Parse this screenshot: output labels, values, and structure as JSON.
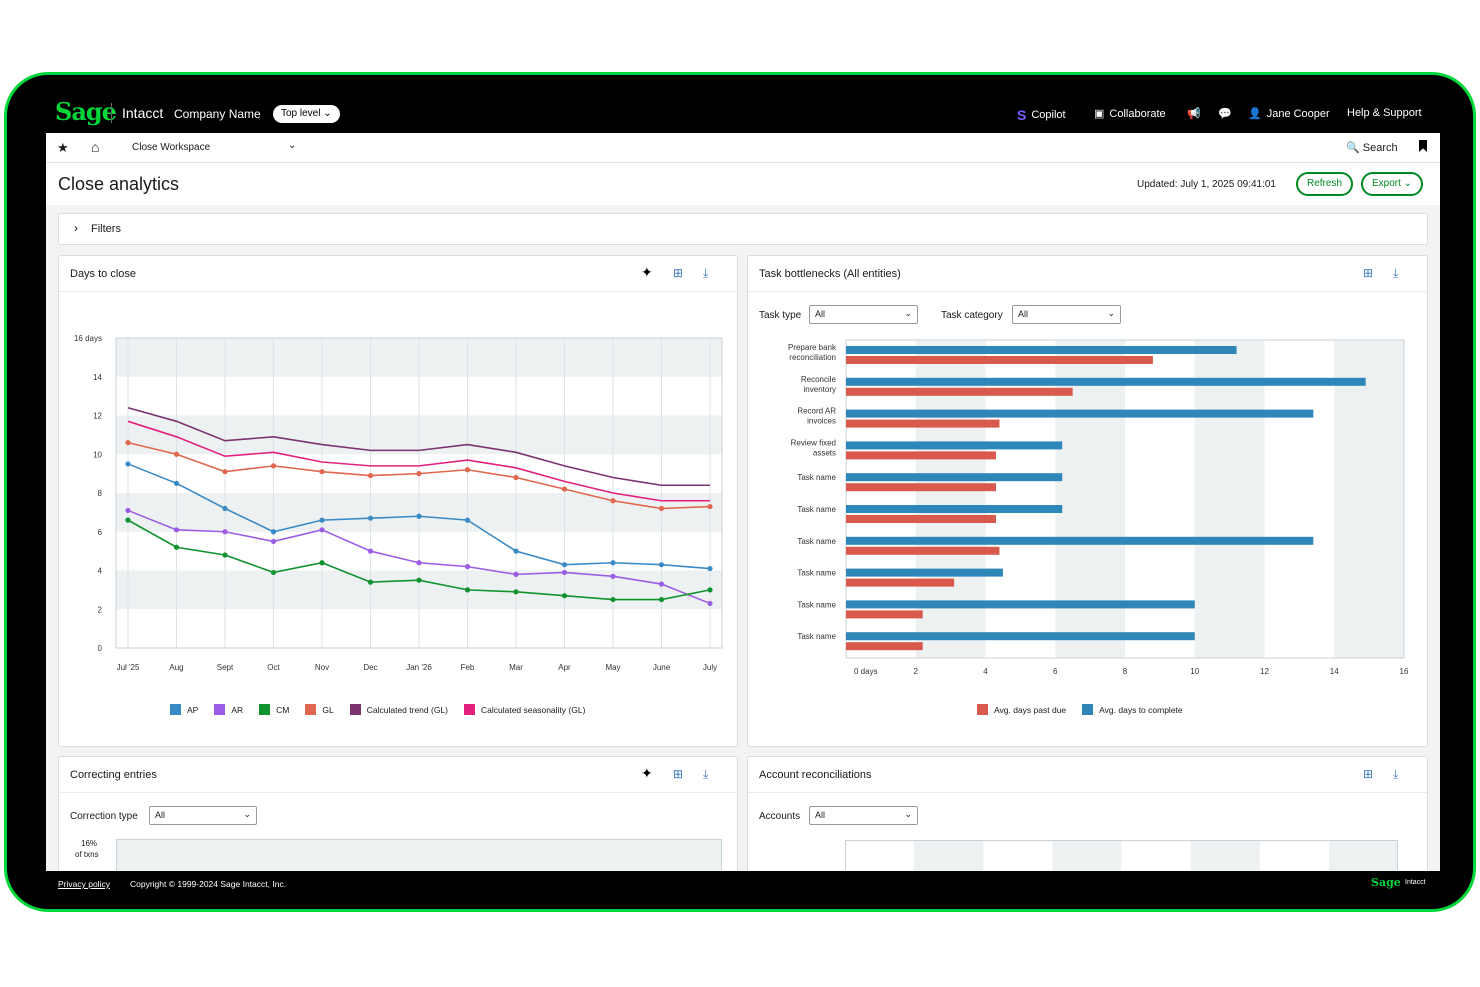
{
  "topbar": {
    "logo": "Sage",
    "product": "Intacct",
    "company": "Company Name",
    "level": "Top level",
    "level_chevron": "⌄",
    "copilot_icon": "S",
    "copilot": "Copilot",
    "collaborate_icon": "▣",
    "collaborate": "Collaborate",
    "announce_icon": "📢",
    "chat_icon": "💬",
    "user_icon": "👤",
    "user": "Jane Cooper",
    "help": "Help & Support"
  },
  "nav": {
    "star_icon": "★",
    "home_icon": "⌂",
    "workspace": "Close Workspace",
    "workspace_chevron": "⌄",
    "search_icon": "🔍",
    "search": "Search"
  },
  "page": {
    "title": "Close analytics",
    "updated": "Updated: July 1, 2025  09:41:01",
    "refresh": "Refresh",
    "export": "Export ⌄",
    "filters_chevron": "›",
    "filters": "Filters"
  },
  "cards": {
    "ai_icon": "✦",
    "table_icon": "⊞",
    "download_icon": "⤓",
    "days_to_close": "Days to close",
    "task_bottlenecks": "Task bottlenecks (All entities)",
    "correcting_entries": "Correcting entries",
    "account_reconciliations": "Account reconciliations"
  },
  "bottleneck_filters": {
    "task_type_label": "Task type",
    "task_type_value": "All",
    "task_category_label": "Task category",
    "task_category_value": "All",
    "chevron": "⌄"
  },
  "correcting_filters": {
    "label": "Correction type",
    "value": "All",
    "chevron": "⌄",
    "y_top_label_1": "16%",
    "y_top_label_2": "of txns"
  },
  "reconciliation_filters": {
    "label": "Accounts",
    "value": "All",
    "chevron": "⌄"
  },
  "chart_data": [
    {
      "type": "line",
      "x": [
        "Jul '25",
        "Aug",
        "Sept",
        "Oct",
        "Nov",
        "Dec",
        "Jan '26",
        "Feb",
        "Mar",
        "Apr",
        "May",
        "June",
        "July"
      ],
      "ylim": [
        0,
        16
      ],
      "y_ticks": [
        "0",
        "2",
        "4",
        "6",
        "8",
        "10",
        "12",
        "14",
        "16 days"
      ],
      "grid": true,
      "legend_position": "bottom",
      "series": [
        {
          "name": "AP",
          "color": "#3a8ac6",
          "markers": true,
          "values": [
            9.5,
            8.5,
            7.2,
            6.0,
            6.6,
            6.7,
            6.8,
            6.6,
            5.0,
            4.3,
            4.4,
            4.3,
            4.1
          ]
        },
        {
          "name": "AR",
          "color": "#9b5de5",
          "markers": true,
          "values": [
            7.1,
            6.1,
            6.0,
            5.5,
            6.1,
            5.0,
            4.4,
            4.2,
            3.8,
            3.9,
            3.7,
            3.3,
            2.3
          ]
        },
        {
          "name": "CM",
          "color": "#10922e",
          "markers": true,
          "values": [
            6.6,
            5.2,
            4.8,
            3.9,
            4.4,
            3.4,
            3.5,
            3.0,
            2.9,
            2.7,
            2.5,
            2.5,
            3.0
          ]
        },
        {
          "name": "GL",
          "color": "#e0674f",
          "markers": true,
          "values": [
            10.6,
            10.0,
            9.1,
            9.4,
            9.1,
            8.9,
            9.0,
            9.2,
            8.8,
            8.2,
            7.6,
            7.2,
            7.3
          ]
        },
        {
          "name": "Calculated trend (GL)",
          "color": "#7b3370",
          "markers": false,
          "values": [
            12.4,
            11.7,
            10.7,
            10.9,
            10.5,
            10.2,
            10.2,
            10.5,
            10.1,
            9.4,
            8.8,
            8.4,
            8.4
          ]
        },
        {
          "name": "Calculated seasonality (GL)",
          "color": "#e2217f",
          "markers": false,
          "values": [
            11.7,
            10.9,
            9.9,
            10.1,
            9.6,
            9.4,
            9.4,
            9.7,
            9.3,
            8.6,
            8.0,
            7.6,
            7.6
          ]
        }
      ]
    },
    {
      "type": "bar",
      "orientation": "horizontal",
      "categories": [
        "Prepare bank reconciliation",
        "Reconcile inventory",
        "Record AR invoices",
        "Review fixed assets",
        "Task name",
        "Task name",
        "Task name",
        "Task name",
        "Task name",
        "Task name"
      ],
      "category_lines": [
        [
          "Prepare bank",
          "reconciliation"
        ],
        [
          "Reconcile",
          "inventory"
        ],
        [
          "Record AR",
          "invoices"
        ],
        [
          "Review fixed",
          "assets"
        ],
        [
          "Task name"
        ],
        [
          "Task name"
        ],
        [
          "Task name"
        ],
        [
          "Task name"
        ],
        [
          "Task name"
        ],
        [
          "Task name"
        ]
      ],
      "xlim": [
        0,
        16
      ],
      "x_ticks": [
        "0 days",
        "2",
        "4",
        "6",
        "8",
        "10",
        "12",
        "14",
        "16"
      ],
      "legend_position": "bottom",
      "series": [
        {
          "name": "Avg. days past due",
          "color": "#d9594c",
          "values": [
            8.8,
            6.5,
            4.4,
            4.3,
            4.3,
            4.3,
            4.4,
            3.1,
            2.2,
            2.2
          ]
        },
        {
          "name": "Avg. days to complete",
          "color": "#2f86b8",
          "values": [
            11.2,
            14.9,
            13.4,
            6.2,
            6.2,
            6.2,
            13.4,
            4.5,
            10.0,
            10.0
          ]
        }
      ]
    }
  ],
  "footer": {
    "privacy": "Privacy policy",
    "copyright": "Copyright © 1999-2024 Sage Intacct, Inc.",
    "logo": "Sage",
    "product": "Intacct"
  }
}
